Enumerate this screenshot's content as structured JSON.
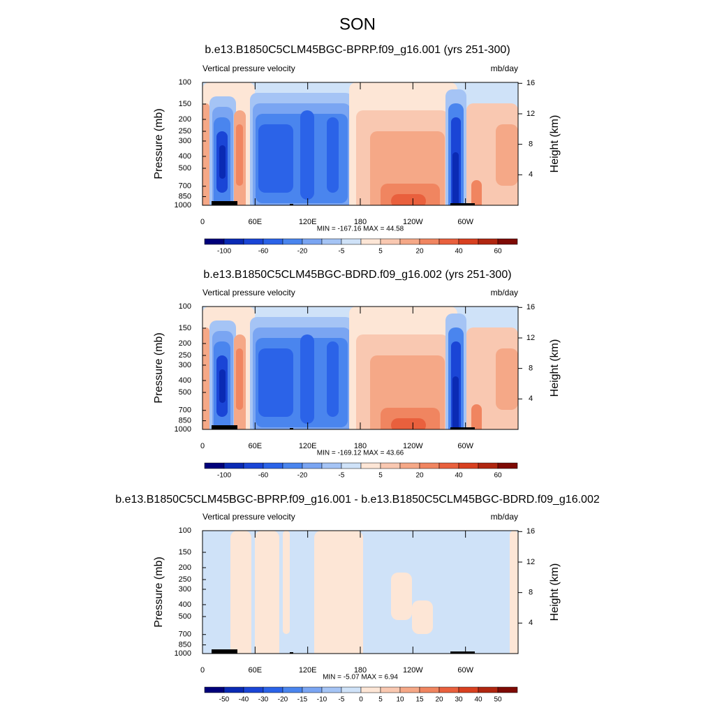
{
  "title": "SON",
  "panels": [
    {
      "chart_data": {
        "type": "contour",
        "title": "b.e13.B1850C5CLM45BGC-BPRP.f09_g16.001 (yrs 251-300)",
        "left_label": "Vertical pressure velocity",
        "right_label": "mb/day",
        "ylabel": "Pressure (mb)",
        "y2label": "Height (km)",
        "log_y": true,
        "ylim": [
          1000,
          100
        ],
        "yticks": [
          100,
          150,
          200,
          250,
          300,
          400,
          500,
          700,
          850,
          1000
        ],
        "y2lim": [
          0,
          16.12
        ],
        "y2ticks": [
          4,
          8,
          12,
          16
        ],
        "xlim": [
          0,
          360
        ],
        "xticks": [
          0,
          {
            "value": 60,
            "label": "60E"
          },
          {
            "value": 120,
            "label": "120E"
          },
          180,
          {
            "value": 240,
            "label": "120W"
          },
          {
            "value": 300,
            "label": "60W"
          }
        ],
        "stats": "MIN = -167.16  MAX =  44.58",
        "colorbar": {
          "colors": [
            "#00007a",
            "#0a2ab4",
            "#1a45d6",
            "#2b63e8",
            "#4a85ee",
            "#7aa5f2",
            "#a5c4f5",
            "#cfe2f8",
            "#fde6d6",
            "#f9c8b1",
            "#f5a887",
            "#f08560",
            "#e9603d",
            "#d84020",
            "#b02610",
            "#7e0a04"
          ],
          "labels": [
            -100,
            null,
            -60,
            null,
            -20,
            null,
            -5,
            null,
            5,
            null,
            20,
            null,
            40,
            null,
            60
          ]
        }
      }
    },
    {
      "chart_data": {
        "type": "contour",
        "title": "b.e13.B1850C5CLM45BGC-BDRD.f09_g16.002 (yrs 251-300)",
        "left_label": "Vertical pressure velocity",
        "right_label": "mb/day",
        "ylabel": "Pressure (mb)",
        "y2label": "Height (km)",
        "log_y": true,
        "ylim": [
          1000,
          100
        ],
        "yticks": [
          100,
          150,
          200,
          250,
          300,
          400,
          500,
          700,
          850,
          1000
        ],
        "y2lim": [
          0,
          16.12
        ],
        "y2ticks": [
          4,
          8,
          12,
          16
        ],
        "xlim": [
          0,
          360
        ],
        "xticks": [
          0,
          {
            "value": 60,
            "label": "60E"
          },
          {
            "value": 120,
            "label": "120E"
          },
          180,
          {
            "value": 240,
            "label": "120W"
          },
          {
            "value": 300,
            "label": "60W"
          }
        ],
        "stats": "MIN = -169.12  MAX =  43.66",
        "colorbar": {
          "colors": [
            "#00007a",
            "#0a2ab4",
            "#1a45d6",
            "#2b63e8",
            "#4a85ee",
            "#7aa5f2",
            "#a5c4f5",
            "#cfe2f8",
            "#fde6d6",
            "#f9c8b1",
            "#f5a887",
            "#f08560",
            "#e9603d",
            "#d84020",
            "#b02610",
            "#7e0a04"
          ],
          "labels": [
            -100,
            null,
            -60,
            null,
            -20,
            null,
            -5,
            null,
            5,
            null,
            20,
            null,
            40,
            null,
            60
          ]
        }
      }
    },
    {
      "chart_data": {
        "type": "contour-diff",
        "title": "b.e13.B1850C5CLM45BGC-BPRP.f09_g16.001 - b.e13.B1850C5CLM45BGC-BDRD.f09_g16.002",
        "left_label": "Vertical pressure velocity",
        "right_label": "mb/day",
        "ylabel": "Pressure (mb)",
        "y2label": "Height (km)",
        "log_y": true,
        "ylim": [
          1000,
          100
        ],
        "yticks": [
          100,
          150,
          200,
          250,
          300,
          400,
          500,
          700,
          850,
          1000
        ],
        "y2lim": [
          0,
          16.12
        ],
        "y2ticks": [
          4,
          8,
          12,
          16
        ],
        "xlim": [
          0,
          360
        ],
        "xticks": [
          0,
          {
            "value": 60,
            "label": "60E"
          },
          {
            "value": 120,
            "label": "120E"
          },
          180,
          {
            "value": 240,
            "label": "120W"
          },
          {
            "value": 300,
            "label": "60W"
          }
        ],
        "stats": "MIN = -5.07  MAX =  6.94",
        "colorbar": {
          "colors": [
            "#00007a",
            "#0a2ab4",
            "#1a45d6",
            "#2b63e8",
            "#4a85ee",
            "#7aa5f2",
            "#a5c4f5",
            "#cfe2f8",
            "#fde6d6",
            "#f9c8b1",
            "#f5a887",
            "#f08560",
            "#e9603d",
            "#d84020",
            "#b02610",
            "#7e0a04"
          ],
          "labels": [
            -50,
            -40,
            -30,
            -20,
            -15,
            -10,
            -5,
            0,
            5,
            10,
            15,
            20,
            30,
            40,
            50
          ]
        }
      }
    }
  ]
}
